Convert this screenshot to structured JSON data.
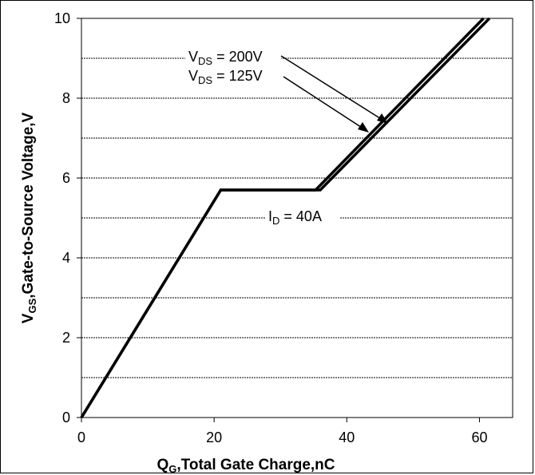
{
  "chart_data": {
    "type": "line",
    "xlabel": {
      "main": "Q",
      "sub": "G",
      "rest": ",Total Gate Charge,nC"
    },
    "ylabel": {
      "main": "V",
      "sub": "GS",
      "rest": ",Gate-to-Source Voltage,V"
    },
    "xlim": [
      0,
      65
    ],
    "ylim": [
      0,
      10
    ],
    "xticks": [
      0,
      20,
      40,
      60
    ],
    "yticks": [
      0,
      2,
      4,
      6,
      8,
      10
    ],
    "grid": "horizontal-dashed",
    "series": [
      {
        "name": "VDS = 125V",
        "x": [
          0,
          21,
          35.3,
          60.6
        ],
        "y": [
          0,
          5.7,
          5.7,
          10
        ]
      },
      {
        "name": "VDS = 200V",
        "x": [
          0,
          21,
          36,
          61.5
        ],
        "y": [
          0,
          5.7,
          5.7,
          10
        ]
      }
    ],
    "annotations": [
      {
        "main": "V",
        "sub": "DS",
        "rest": " = 200V"
      },
      {
        "main": "V",
        "sub": "DS",
        "rest": " = 125V"
      },
      {
        "main": "I",
        "sub": "D",
        "rest": " = 40A"
      }
    ]
  }
}
